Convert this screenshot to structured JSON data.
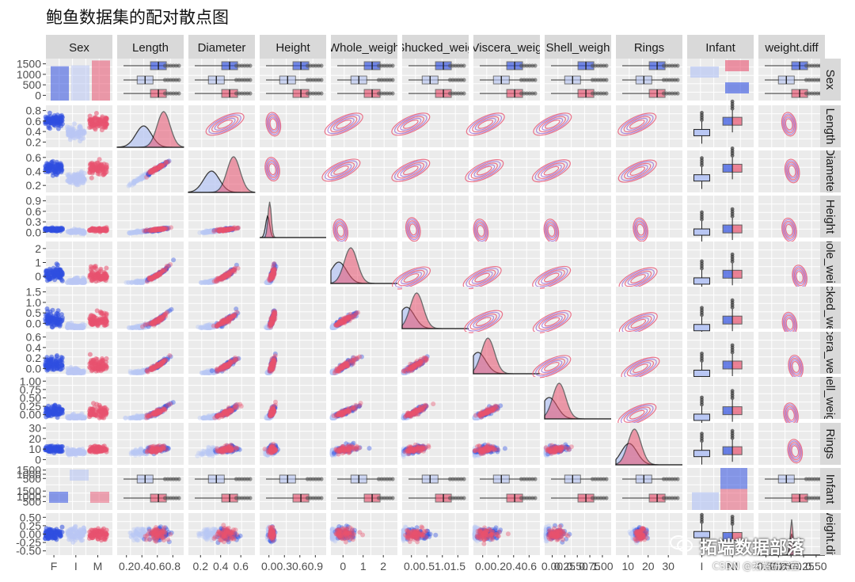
{
  "chart_data": {
    "type": "pairs",
    "title": "鲍鱼数据集的配对散点图",
    "variables": [
      "Sex",
      "Length",
      "Diameter",
      "Height",
      "Whole_weight",
      "Shucked_weight",
      "Viscera_weight",
      "Shell_weight",
      "Rings",
      "Infant",
      "weight.diff"
    ],
    "column_strips": [
      "Sex",
      "Length",
      "Diameter",
      "Height",
      "Whole_weigh",
      "Shucked_weig",
      "Viscera_weig",
      "Shell_weigh",
      "Rings",
      "Infant",
      "weight.diff"
    ],
    "row_strips": [
      "Sex",
      "Length",
      "Diameter",
      "Height",
      "Whole_weight",
      "Shucked_weight",
      "Viscera_weight",
      "Shell_weight",
      "Rings",
      "Infant",
      "weight.diff"
    ],
    "sex_levels": [
      "F",
      "I",
      "M"
    ],
    "infant_levels": [
      "I",
      "NI"
    ],
    "colors": {
      "F": "#2f4fe0",
      "I": "#b9c7f4",
      "M": "#e8526f",
      "NI": "#e8526f",
      "overlap": "#9b4f8f"
    },
    "bottom_ticks": [
      [
        "F",
        "I",
        "M"
      ],
      [
        "0.2",
        "0.4",
        "0.6",
        "0.8"
      ],
      [
        "0.2",
        "0.4",
        "0.6"
      ],
      [
        "0.0",
        "0.3",
        "0.6",
        "0.9"
      ],
      [
        "0",
        "1",
        "2"
      ],
      [
        "0.0",
        "0.5",
        "1.0",
        "1.5"
      ],
      [
        "0.0",
        "0.2",
        "0.4",
        "0.6"
      ],
      [
        "0.00",
        "0.25",
        "0.50",
        "0.75",
        "1.00"
      ],
      [
        "10",
        "20",
        "30"
      ],
      [
        "I",
        "NI"
      ],
      [
        "-0.50",
        "-0.25",
        "0.00",
        "0.25",
        "0.50"
      ]
    ],
    "left_ticks": [
      [
        "1500",
        "1000",
        "500",
        "0"
      ],
      [
        "0.8",
        "0.6",
        "0.4",
        "0.2"
      ],
      [
        "0.6",
        "0.4",
        "0.2"
      ],
      [
        "0.9",
        "0.6",
        "0.3",
        "0.0"
      ],
      [
        "2",
        "1",
        "0"
      ],
      [
        "1.5",
        "1.0",
        "0.5",
        "0.0"
      ],
      [
        "0.6",
        "0.4",
        "0.2",
        "0.0"
      ],
      [
        "1.00",
        "0.75",
        "0.50",
        "0.25",
        "0.00"
      ],
      [
        "30",
        "20",
        "10",
        "0"
      ],
      [
        "1500",
        "1000",
        "500",
        "1500",
        "1000",
        "500"
      ],
      [
        "0.50",
        "0.25",
        "0.00",
        "-0.25",
        "-0.50"
      ]
    ],
    "counts": {
      "F": 1307,
      "I": 1342,
      "M": 1528
    },
    "ranges": {
      "Length": [
        0.075,
        0.815
      ],
      "Diameter": [
        0.055,
        0.65
      ],
      "Height": [
        0,
        1.13
      ],
      "Whole_weight": [
        0,
        2.83
      ],
      "Shucked_weight": [
        0,
        1.49
      ],
      "Viscera_weight": [
        0,
        0.76
      ],
      "Shell_weight": [
        0,
        1.0
      ],
      "Rings": [
        1,
        29
      ],
      "weight.diff": [
        -0.6,
        0.6
      ]
    }
  },
  "watermark": {
    "main": "拓端数据部落",
    "sub": "CSDN @拓端研究室"
  }
}
